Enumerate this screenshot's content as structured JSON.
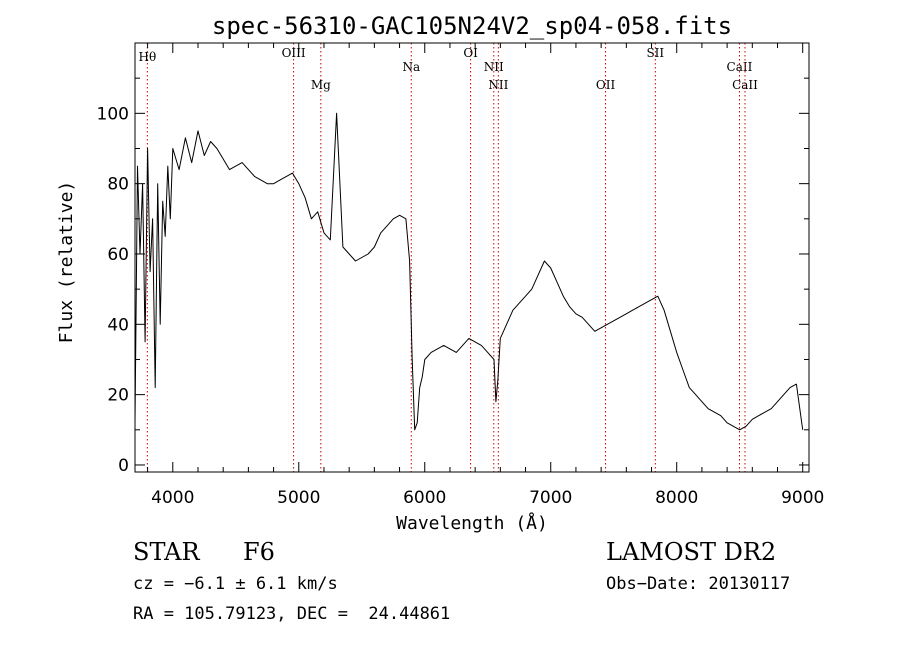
{
  "chart_data": {
    "type": "line",
    "title": "spec-56310-GAC105N24V2_sp04-058.fits",
    "xlabel": "Wavelength (Å)",
    "ylabel": "Flux (relative)",
    "xlim": [
      3700,
      9050
    ],
    "ylim": [
      -2,
      120
    ],
    "x_ticks": [
      4000,
      5000,
      6000,
      7000,
      8000,
      9000
    ],
    "y_ticks": [
      0,
      20,
      40,
      60,
      80,
      100
    ],
    "grid": false,
    "series": [
      {
        "color": "#000000",
        "x": [
          3700,
          3720,
          3740,
          3760,
          3780,
          3800,
          3820,
          3840,
          3860,
          3880,
          3900,
          3920,
          3940,
          3960,
          3980,
          4000,
          4050,
          4100,
          4150,
          4200,
          4250,
          4300,
          4350,
          4400,
          4450,
          4500,
          4550,
          4600,
          4650,
          4700,
          4750,
          4800,
          4850,
          4900,
          4950,
          5000,
          5050,
          5100,
          5150,
          5200,
          5250,
          5300,
          5350,
          5400,
          5450,
          5500,
          5550,
          5600,
          5650,
          5700,
          5750,
          5800,
          5850,
          5880,
          5900,
          5920,
          5940,
          5960,
          5980,
          6000,
          6050,
          6100,
          6150,
          6200,
          6250,
          6300,
          6350,
          6400,
          6450,
          6500,
          6550,
          6565,
          6580,
          6600,
          6650,
          6700,
          6750,
          6800,
          6850,
          6900,
          6950,
          7000,
          7050,
          7100,
          7150,
          7200,
          7250,
          7300,
          7350,
          7400,
          7450,
          7500,
          7550,
          7600,
          7650,
          7700,
          7750,
          7800,
          7850,
          7900,
          7950,
          8000,
          8050,
          8100,
          8150,
          8200,
          8250,
          8300,
          8350,
          8400,
          8450,
          8500,
          8550,
          8600,
          8650,
          8700,
          8750,
          8800,
          8850,
          8900,
          8950,
          9000
        ],
        "y": [
          12,
          85,
          60,
          80,
          35,
          90,
          55,
          70,
          22,
          80,
          40,
          75,
          65,
          85,
          70,
          90,
          84,
          93,
          86,
          95,
          88,
          92,
          90,
          87,
          84,
          85,
          86,
          84,
          82,
          81,
          80,
          80,
          81,
          82,
          83,
          80,
          76,
          70,
          72,
          66,
          64,
          100,
          62,
          60,
          58,
          59,
          60,
          62,
          66,
          68,
          70,
          71,
          70,
          58,
          30,
          10,
          12,
          22,
          25,
          30,
          32,
          33,
          34,
          33,
          32,
          34,
          36,
          35,
          34,
          32,
          30,
          18,
          24,
          36,
          40,
          44,
          46,
          48,
          50,
          54,
          58,
          56,
          52,
          48,
          45,
          43,
          42,
          40,
          38,
          39,
          40,
          41,
          42,
          43,
          44,
          45,
          46,
          47,
          48,
          44,
          38,
          32,
          27,
          22,
          20,
          18,
          16,
          15,
          14,
          12,
          11,
          10,
          11,
          13,
          14,
          15,
          16,
          18,
          20,
          22,
          23,
          10
        ]
      }
    ],
    "lines": [
      {
        "label": "Hθ",
        "x": 3798
      },
      {
        "label": "OIII",
        "x": 4959
      },
      {
        "label": "Mg",
        "x": 5175
      },
      {
        "label": "Na",
        "x": 5893
      },
      {
        "label": "OI",
        "x": 6364
      },
      {
        "label": "NII",
        "x": 6548
      },
      {
        "label": "NII",
        "x": 6584
      },
      {
        "label": "OII",
        "x": 7435
      },
      {
        "label": "SII",
        "x": 7830
      },
      {
        "label": "CaII",
        "x": 8498
      },
      {
        "label": "CaII",
        "x": 8542
      }
    ]
  },
  "footer": {
    "class": "STAR",
    "subclass": "F6",
    "survey": "LAMOST DR2",
    "cz": "cz = −6.1 ± 6.1 km/s",
    "obs_date": "Obs−Date: 20130117",
    "radec": "RA = 105.79123, DEC =  24.44861"
  }
}
